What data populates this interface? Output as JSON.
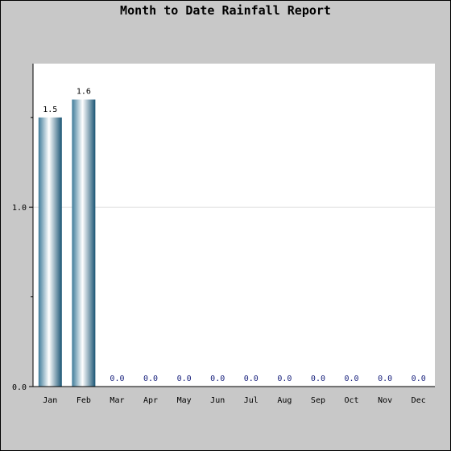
{
  "chart_data": {
    "type": "bar",
    "title": "Month to Date Rainfall Report",
    "xlabel": "",
    "ylabel": "",
    "categories": [
      "Jan",
      "Feb",
      "Mar",
      "Apr",
      "May",
      "Jun",
      "Jul",
      "Aug",
      "Sep",
      "Oct",
      "Nov",
      "Dec"
    ],
    "values": [
      1.5,
      1.6,
      0.0,
      0.0,
      0.0,
      0.0,
      0.0,
      0.0,
      0.0,
      0.0,
      0.0,
      0.0
    ],
    "value_labels": [
      "1.5",
      "1.6",
      "0.0",
      "0.0",
      "0.0",
      "0.0",
      "0.0",
      "0.0",
      "0.0",
      "0.0",
      "0.0",
      "0.0"
    ],
    "ylim": [
      0,
      1.8
    ],
    "y_ticks": [
      0.0,
      1.0
    ],
    "y_tick_labels": [
      "0.0",
      "1.0"
    ],
    "y_minor_ticks": [
      0.5,
      1.5
    ],
    "grid": true,
    "legend": "none",
    "colors": {
      "background": "#c8c8c8",
      "plot_bg": "#ffffff",
      "bar_dark": "#1a5574",
      "bar_light": "#ffffff",
      "gridline": "#e0e0e0",
      "zero_label": "#1a237e"
    }
  }
}
